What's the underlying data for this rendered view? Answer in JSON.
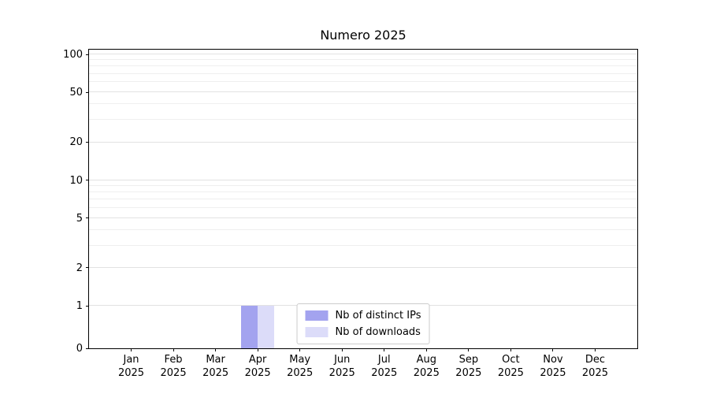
{
  "chart_data": {
    "type": "bar",
    "title": "Numero 2025",
    "categories": [
      "Jan",
      "Feb",
      "Mar",
      "Apr",
      "May",
      "Jun",
      "Jul",
      "Aug",
      "Sep",
      "Oct",
      "Nov",
      "Dec"
    ],
    "year_label": "2025",
    "series": [
      {
        "name": "Nb of distinct IPs",
        "color": "#a3a3ef",
        "values": [
          0,
          0,
          0,
          1,
          0,
          0,
          0,
          0,
          0,
          0,
          0,
          0
        ]
      },
      {
        "name": "Nb of downloads",
        "color": "#dcdcf9",
        "values": [
          0,
          0,
          0,
          1,
          0,
          0,
          0,
          0,
          0,
          0,
          0,
          0
        ]
      }
    ],
    "yticks": [
      0,
      1,
      2,
      5,
      10,
      20,
      50,
      100
    ],
    "yscale": "symlog",
    "grid": "horizontal",
    "legend_position": "lower center"
  }
}
